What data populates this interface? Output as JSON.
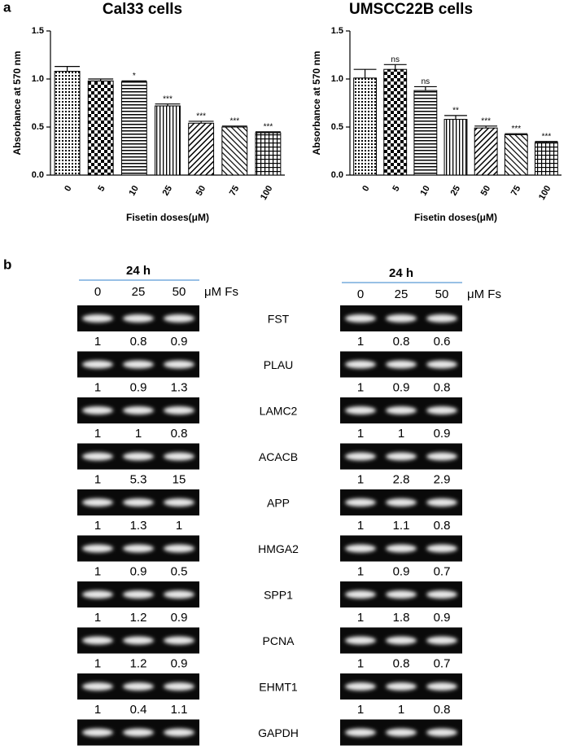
{
  "panel_a_label": "a",
  "panel_b_label": "b",
  "chart_data": [
    {
      "type": "bar",
      "title": "Cal33 cells",
      "y_label": "Absorbance at 570 nm",
      "x_label": "Fisetin doses(μM)",
      "categories": [
        "0",
        "5",
        "10",
        "25",
        "50",
        "75",
        "100"
      ],
      "values": [
        1.08,
        0.98,
        0.97,
        0.72,
        0.54,
        0.5,
        0.44
      ],
      "errors": [
        0.05,
        0.02,
        0.01,
        0.02,
        0.02,
        0.01,
        0.01
      ],
      "annotations": [
        null,
        null,
        "*",
        "***",
        "***",
        "***",
        "***"
      ],
      "ylim": [
        0,
        1.5
      ],
      "yticks": [
        {
          "value": 0,
          "label": "0.0"
        },
        0.5,
        {
          "value": 1,
          "label": "1.0"
        },
        1.5
      ]
    },
    {
      "type": "bar",
      "title": "UMSCC22B cells",
      "y_label": "Absorbance at 570 nm",
      "x_label": "Fisetin doses(μM)",
      "categories": [
        "0",
        "5",
        "10",
        "25",
        "50",
        "75",
        "100"
      ],
      "values": [
        1.01,
        1.1,
        0.88,
        0.58,
        0.49,
        0.42,
        0.34
      ],
      "errors": [
        0.09,
        0.05,
        0.04,
        0.04,
        0.02,
        0.01,
        0.01
      ],
      "annotations": [
        null,
        "ns",
        "ns",
        "**",
        "***",
        "***",
        "***"
      ],
      "ylim": [
        0,
        1.5
      ],
      "yticks": [
        {
          "value": 0,
          "label": "0.0"
        },
        0.5,
        {
          "value": 1,
          "label": "1.0"
        },
        1.5
      ]
    }
  ],
  "genes": [
    "FST",
    "PLAU",
    "LAMC2",
    "ACACB",
    "APP",
    "HMGA2",
    "SPP1",
    "PCNA",
    "EHMT1",
    "GAPDH"
  ],
  "gels": [
    {
      "header": "24 h",
      "columns": [
        "0",
        "25",
        "50"
      ],
      "unit": "μM Fs",
      "quantification": [
        [
          1,
          0.8,
          0.9
        ],
        [
          1,
          0.9,
          1.3
        ],
        [
          1,
          1,
          0.8
        ],
        [
          1,
          5.3,
          15
        ],
        [
          1,
          1.3,
          1
        ],
        [
          1,
          0.9,
          0.5
        ],
        [
          1,
          1.2,
          0.9
        ],
        [
          1,
          1.2,
          0.9
        ],
        [
          1,
          0.4,
          1.1
        ]
      ]
    },
    {
      "header": "24 h",
      "columns": [
        "0",
        "25",
        "50"
      ],
      "unit": "μM Fs",
      "quantification": [
        [
          1,
          0.8,
          0.6
        ],
        [
          1,
          0.9,
          0.8
        ],
        [
          1,
          1,
          0.9
        ],
        [
          1,
          2.8,
          2.9
        ],
        [
          1,
          1.1,
          0.8
        ],
        [
          1,
          0.9,
          0.7
        ],
        [
          1,
          1.8,
          0.9
        ],
        [
          1,
          0.8,
          0.7
        ],
        [
          1,
          1,
          0.8
        ]
      ]
    }
  ]
}
